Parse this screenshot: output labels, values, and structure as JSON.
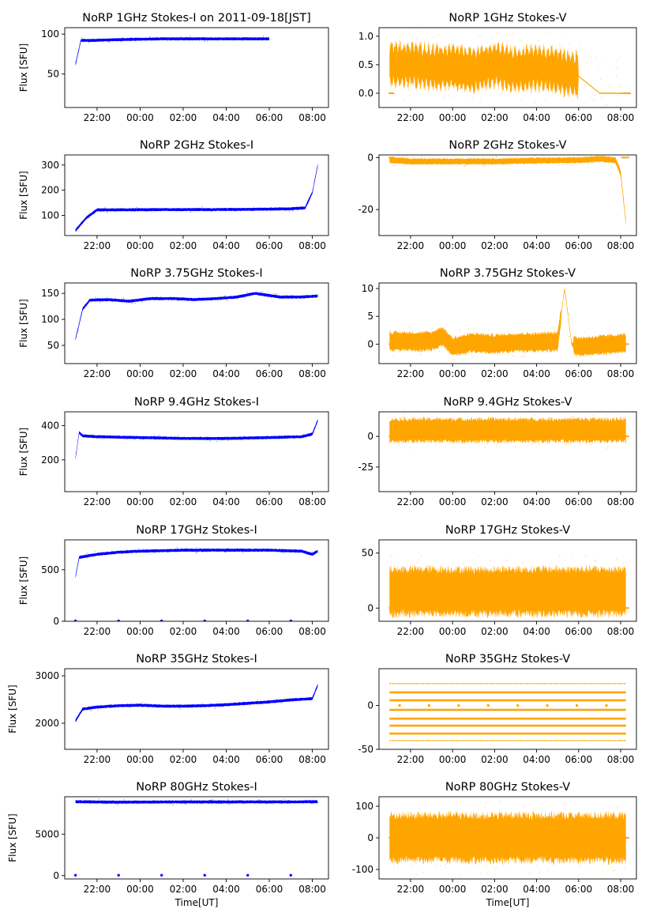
{
  "figure": {
    "colors": {
      "stokes_i": "#0000ff",
      "stokes_v": "#ffa500"
    },
    "grid": false,
    "x_ticks": [
      "22:00",
      "00:00",
      "02:00",
      "04:00",
      "06:00",
      "08:00"
    ]
  },
  "chart_data": [
    {
      "type": "scatter",
      "title": "NoRP 1GHz Stokes-I on 2011-09-18[JST]",
      "xlabel": "",
      "ylabel": "Flux [SFU]",
      "color": "#0000ff",
      "xlim": [
        "20:30",
        "08:45"
      ],
      "ylim": [
        8,
        108
      ],
      "yticks": [
        50,
        100
      ],
      "x": [
        "21:00",
        "21:15",
        "21:40",
        "23:00",
        "01:00",
        "03:00",
        "05:00",
        "06:00"
      ],
      "y": [
        62,
        92,
        92,
        93,
        94,
        94,
        94,
        94
      ]
    },
    {
      "type": "scatter",
      "title": "NoRP 1GHz Stokes-V",
      "xlabel": "",
      "ylabel": "",
      "color": "#ffa500",
      "xlim": [
        "20:30",
        "08:45"
      ],
      "ylim": [
        -0.25,
        1.15
      ],
      "yticks": [
        0.0,
        0.5,
        1.0
      ],
      "x": [
        "21:00",
        "22:00",
        "23:00",
        "00:00",
        "01:00",
        "02:00",
        "03:00",
        "04:00",
        "05:00",
        "06:00",
        "07:00",
        "08:20"
      ],
      "y": [
        0.5,
        0.5,
        0.45,
        0.45,
        0.4,
        0.5,
        0.4,
        0.45,
        0.4,
        0.3,
        0.0,
        0.0
      ]
    },
    {
      "type": "scatter",
      "title": "NoRP 2GHz Stokes-I",
      "xlabel": "",
      "ylabel": "Flux [SFU]",
      "color": "#0000ff",
      "xlim": [
        "20:30",
        "08:45"
      ],
      "ylim": [
        20,
        340
      ],
      "yticks": [
        100,
        200,
        300
      ],
      "x": [
        "21:00",
        "21:30",
        "22:00",
        "23:00",
        "01:00",
        "03:00",
        "05:00",
        "07:00",
        "07:40",
        "08:00",
        "08:15"
      ],
      "y": [
        40,
        90,
        122,
        122,
        123,
        123,
        124,
        126,
        130,
        190,
        300
      ]
    },
    {
      "type": "scatter",
      "title": "NoRP 2GHz Stokes-V",
      "xlabel": "",
      "ylabel": "",
      "color": "#ffa500",
      "xlim": [
        "20:30",
        "08:45"
      ],
      "ylim": [
        -30,
        1
      ],
      "yticks": [
        -20,
        0
      ],
      "x": [
        "21:00",
        "22:00",
        "00:00",
        "02:00",
        "04:00",
        "06:00",
        "07:00",
        "07:45",
        "08:00",
        "08:15"
      ],
      "y": [
        -1,
        -1.5,
        -1.5,
        -1.5,
        -1.2,
        -1,
        -0.5,
        -1,
        -6,
        -25
      ]
    },
    {
      "type": "scatter",
      "title": "NoRP 3.75GHz Stokes-I",
      "xlabel": "",
      "ylabel": "Flux [SFU]",
      "color": "#0000ff",
      "xlim": [
        "20:30",
        "08:45"
      ],
      "ylim": [
        15,
        170
      ],
      "yticks": [
        50,
        100,
        150
      ],
      "x": [
        "21:00",
        "21:20",
        "21:40",
        "22:30",
        "23:30",
        "00:30",
        "01:30",
        "02:30",
        "03:30",
        "04:30",
        "05:20",
        "06:30",
        "07:30",
        "08:15"
      ],
      "y": [
        62,
        120,
        137,
        138,
        135,
        140,
        140,
        138,
        140,
        143,
        150,
        143,
        143,
        145
      ]
    },
    {
      "type": "scatter",
      "title": "NoRP 3.75GHz Stokes-V",
      "xlabel": "",
      "ylabel": "",
      "color": "#ffa500",
      "xlim": [
        "20:30",
        "08:45"
      ],
      "ylim": [
        -3.5,
        11
      ],
      "yticks": [
        0,
        5,
        10
      ],
      "x": [
        "21:00",
        "22:00",
        "23:00",
        "23:30",
        "00:00",
        "01:00",
        "02:00",
        "03:00",
        "04:00",
        "05:00",
        "05:20",
        "05:40",
        "06:00",
        "07:00",
        "08:15"
      ],
      "y": [
        0.5,
        0.5,
        0.5,
        1.5,
        -0.5,
        0.3,
        0,
        0.3,
        0.3,
        0.5,
        10,
        0,
        -0.5,
        -0.2,
        0.2
      ]
    },
    {
      "type": "scatter",
      "title": "NoRP 9.4GHz Stokes-I",
      "xlabel": "",
      "ylabel": "Flux [SFU]",
      "color": "#0000ff",
      "xlim": [
        "20:30",
        "08:45"
      ],
      "ylim": [
        15,
        480
      ],
      "yticks": [
        200,
        400
      ],
      "x": [
        "21:00",
        "21:10",
        "21:20",
        "22:00",
        "00:00",
        "02:00",
        "04:00",
        "06:00",
        "07:30",
        "08:00",
        "08:15"
      ],
      "y": [
        210,
        360,
        340,
        335,
        330,
        325,
        325,
        330,
        335,
        350,
        430
      ]
    },
    {
      "type": "scatter",
      "title": "NoRP 9.4GHz Stokes-V",
      "xlabel": "",
      "ylabel": "",
      "color": "#ffa500",
      "xlim": [
        "20:30",
        "08:45"
      ],
      "ylim": [
        -45,
        20
      ],
      "yticks": [
        -25,
        0
      ],
      "x": [
        "21:00",
        "22:00",
        "00:00",
        "02:00",
        "04:00",
        "06:00",
        "08:15"
      ],
      "y": [
        5,
        5,
        5,
        5,
        5,
        5,
        5
      ]
    },
    {
      "type": "scatter",
      "title": "NoRP 17GHz Stokes-I",
      "xlabel": "",
      "ylabel": "Flux [SFU]",
      "color": "#0000ff",
      "xlim": [
        "20:30",
        "08:45"
      ],
      "ylim": [
        0,
        790
      ],
      "yticks": [
        0,
        500
      ],
      "x": [
        "21:00",
        "21:10",
        "22:00",
        "23:00",
        "00:00",
        "02:00",
        "04:00",
        "06:00",
        "07:30",
        "08:00",
        "08:15"
      ],
      "y": [
        430,
        620,
        650,
        670,
        680,
        690,
        690,
        690,
        680,
        650,
        680
      ]
    },
    {
      "type": "scatter",
      "title": "NoRP 17GHz Stokes-V",
      "xlabel": "",
      "ylabel": "",
      "color": "#ffa500",
      "xlim": [
        "20:30",
        "08:45"
      ],
      "ylim": [
        -12,
        62
      ],
      "yticks": [
        0,
        50
      ],
      "x": [
        "21:00",
        "22:00",
        "00:00",
        "02:00",
        "04:00",
        "06:00",
        "08:15"
      ],
      "y": [
        15,
        15,
        15,
        15,
        15,
        15,
        15
      ]
    },
    {
      "type": "scatter",
      "title": "NoRP 35GHz Stokes-I",
      "xlabel": "",
      "ylabel": "Flux [SFU]",
      "color": "#0000ff",
      "xlim": [
        "20:30",
        "08:45"
      ],
      "ylim": [
        1450,
        3150
      ],
      "yticks": [
        2000,
        3000
      ],
      "x": [
        "21:00",
        "21:20",
        "22:00",
        "23:00",
        "00:00",
        "01:00",
        "02:00",
        "03:00",
        "04:00",
        "05:00",
        "06:00",
        "07:00",
        "08:00",
        "08:15"
      ],
      "y": [
        2050,
        2300,
        2340,
        2370,
        2380,
        2360,
        2360,
        2370,
        2390,
        2420,
        2450,
        2490,
        2520,
        2800
      ]
    },
    {
      "type": "scatter",
      "title": "NoRP 35GHz Stokes-V",
      "xlabel": "",
      "ylabel": "",
      "color": "#ffa500",
      "xlim": [
        "20:30",
        "08:45"
      ],
      "ylim": [
        -50,
        42
      ],
      "yticks": [
        -50,
        0
      ],
      "levels": [
        25,
        15,
        6,
        -5,
        -15,
        -23,
        -32,
        -40
      ],
      "x": [
        "21:00",
        "08:15"
      ],
      "y": [
        0,
        0
      ]
    },
    {
      "type": "scatter",
      "title": "NoRP 80GHz Stokes-I",
      "xlabel": "Time[UT]",
      "ylabel": "Flux [SFU]",
      "color": "#0000ff",
      "xlim": [
        "20:30",
        "08:45"
      ],
      "ylim": [
        -400,
        9500
      ],
      "yticks": [
        0,
        5000
      ],
      "x": [
        "21:00",
        "23:00",
        "01:00",
        "03:00",
        "05:00",
        "07:00",
        "08:15"
      ],
      "y": [
        8900,
        8850,
        8870,
        8880,
        8880,
        8880,
        8900
      ]
    },
    {
      "type": "scatter",
      "title": "NoRP 80GHz Stokes-V",
      "xlabel": "Time[UT]",
      "ylabel": "",
      "color": "#ffa500",
      "xlim": [
        "20:30",
        "08:45"
      ],
      "ylim": [
        -130,
        130
      ],
      "yticks": [
        -100,
        0,
        100
      ],
      "x": [
        "21:00",
        "22:00",
        "00:00",
        "02:00",
        "04:00",
        "06:00",
        "08:15"
      ],
      "y": [
        0,
        0,
        0,
        0,
        0,
        0,
        0
      ]
    }
  ]
}
